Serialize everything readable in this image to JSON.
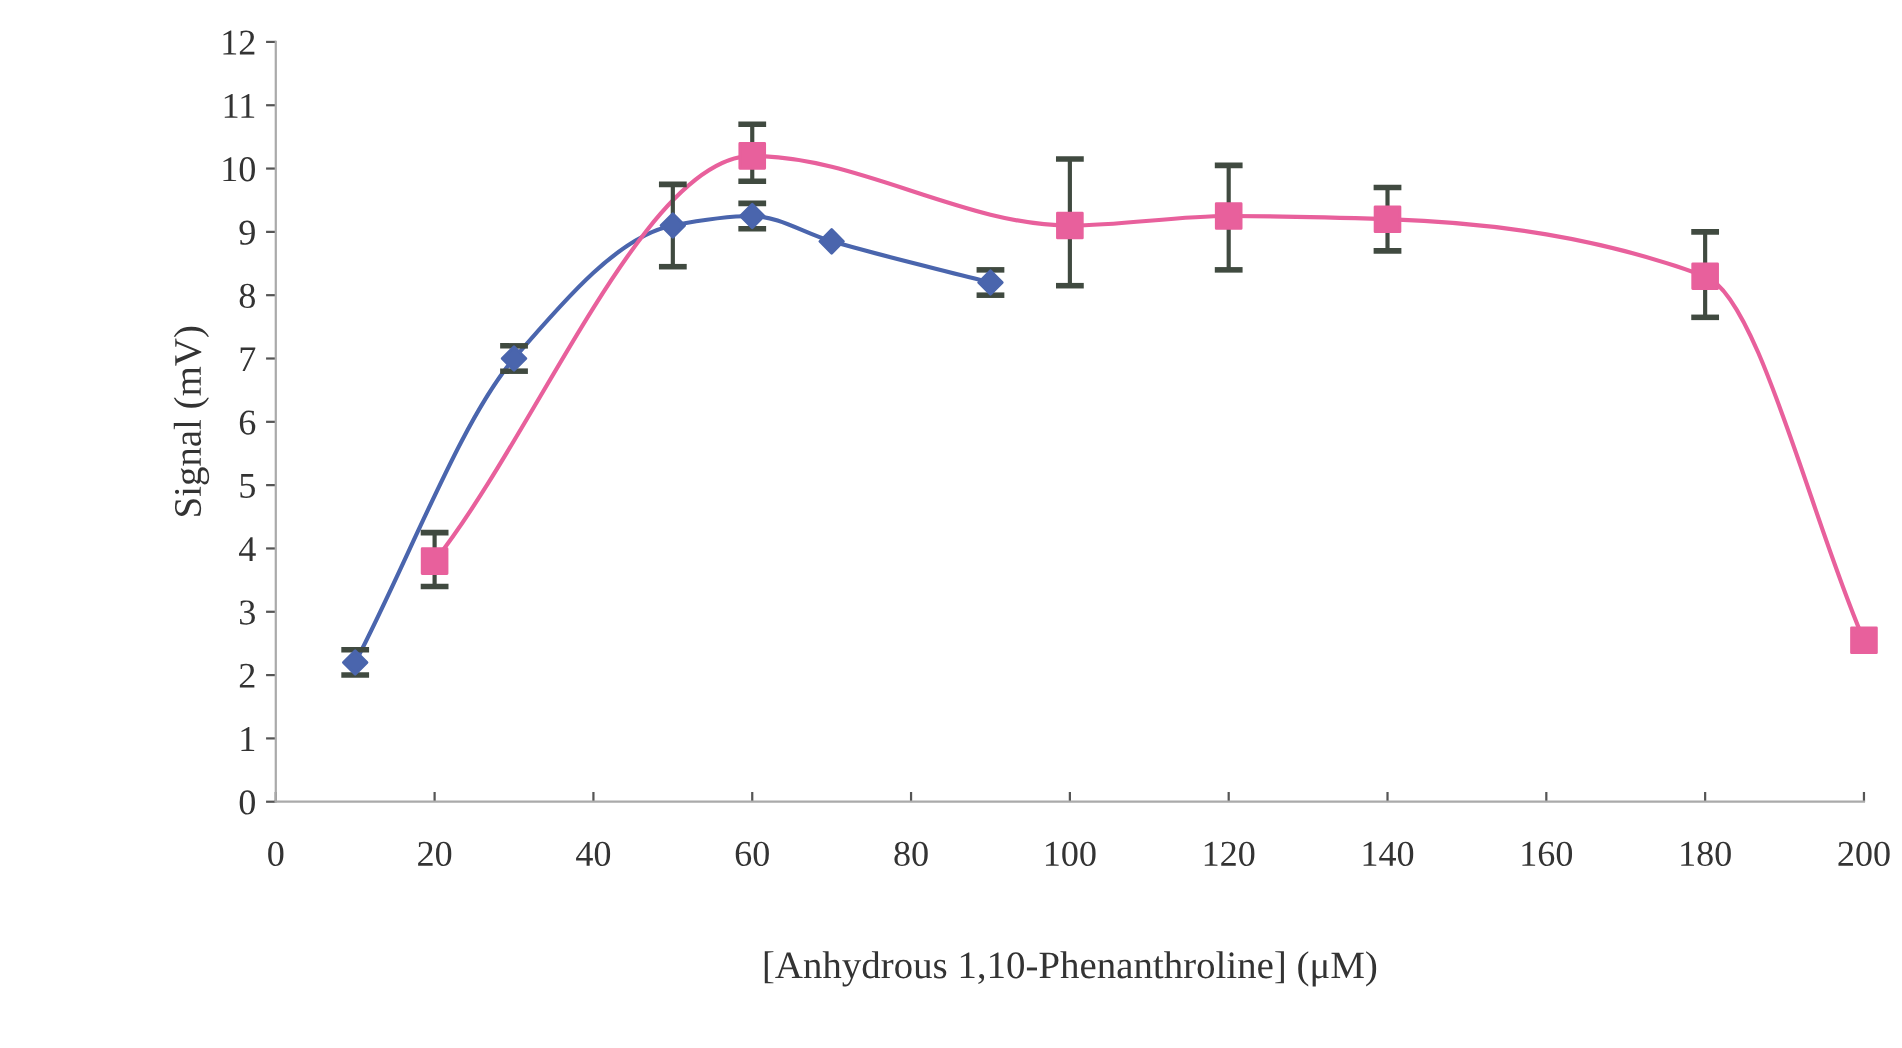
{
  "chart_data": {
    "type": "line",
    "xlabel": "[Anhydrous 1,10-Phenanthroline] (μM)",
    "ylabel": "Signal (mV)",
    "xlim": [
      0,
      200
    ],
    "xticks": [
      0,
      20,
      40,
      60,
      80,
      100,
      120,
      140,
      160,
      180,
      200
    ],
    "ylim": [
      0,
      12
    ],
    "yticks": [
      0,
      1,
      2,
      3,
      4,
      5,
      6,
      7,
      8,
      9,
      10,
      11,
      12
    ],
    "grid": false,
    "legend": false,
    "series": [
      {
        "color": "#4a65ad",
        "marker": "diamond",
        "x": [
          10,
          30,
          50,
          60,
          70,
          90
        ],
        "values": [
          2.2,
          7.0,
          9.1,
          9.25,
          8.85,
          8.2
        ],
        "errors": [
          0.2,
          0.2,
          0.65,
          0.2,
          null,
          0.2
        ]
      },
      {
        "color": "#e8609c",
        "marker": "square",
        "x": [
          20,
          60,
          100,
          120,
          140,
          180,
          200
        ],
        "values": [
          3.8,
          10.2,
          9.1,
          9.25,
          9.2,
          8.3,
          2.55
        ],
        "errors": [
          [
            3.4,
            4.25
          ],
          [
            9.8,
            10.7
          ],
          [
            8.15,
            10.15
          ],
          [
            8.4,
            10.05
          ],
          [
            8.7,
            9.7
          ],
          [
            7.65,
            9.0
          ],
          null
        ]
      }
    ]
  }
}
